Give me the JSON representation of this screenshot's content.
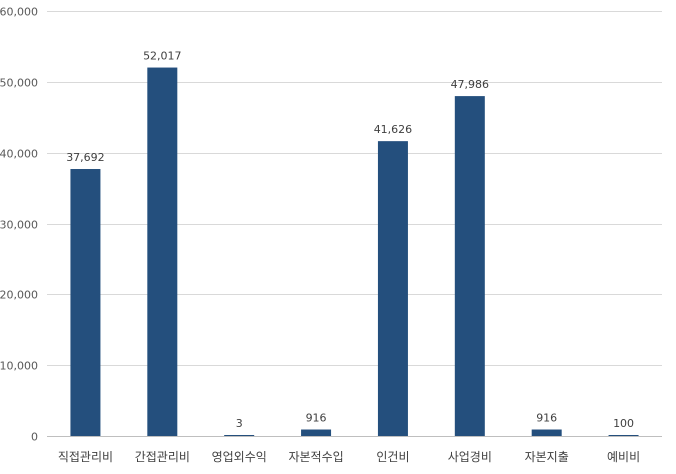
{
  "chart_data": {
    "type": "bar",
    "title": "",
    "xlabel": "",
    "ylabel": "",
    "categories": [
      "직접관리비",
      "간접관리비",
      "영업외수익",
      "자본적수입",
      "인건비",
      "사업경비",
      "자본지출",
      "예비비"
    ],
    "values": [
      37692,
      52017,
      3,
      916,
      41626,
      47986,
      916,
      100
    ],
    "value_labels": [
      "37,692",
      "52,017",
      "3",
      "916",
      "41,626",
      "47,986",
      "916",
      "100"
    ],
    "ylim": [
      0,
      60000
    ],
    "y_ticks": [
      0,
      10000,
      20000,
      30000,
      40000,
      50000,
      60000
    ],
    "y_tick_labels": [
      "0",
      "10,000",
      "20,000",
      "30,000",
      "40,000",
      "50,000",
      "60,000"
    ],
    "grid": true,
    "legend": "none",
    "bar_color": "#244f7d"
  }
}
